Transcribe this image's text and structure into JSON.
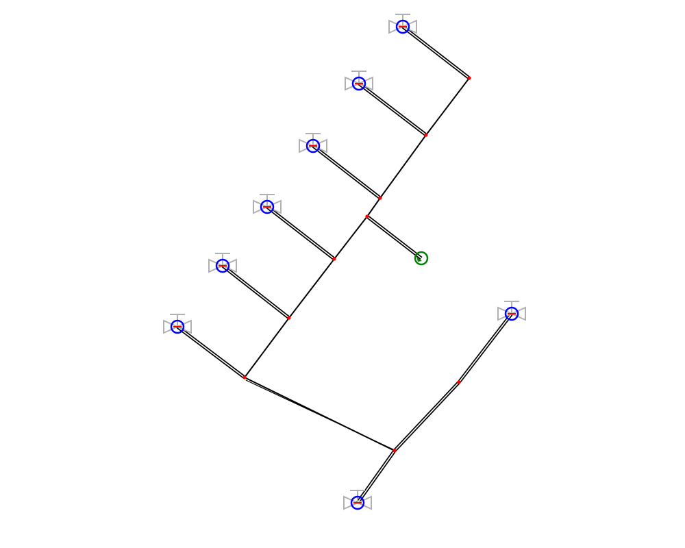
{
  "diagram": {
    "type": "pipe-network",
    "colors": {
      "background": "#ffffff",
      "pipe": "#000000",
      "pipe_inner": "#ffffff",
      "node": "#ff0000",
      "terminal": "#0000ff",
      "source": "#008000",
      "valve_symbol": "#b0b0b0"
    },
    "nodes": [
      {
        "id": "N1",
        "role": "junction"
      },
      {
        "id": "N2",
        "role": "junction"
      },
      {
        "id": "N3",
        "role": "junction"
      },
      {
        "id": "N4",
        "role": "junction"
      },
      {
        "id": "N5",
        "role": "junction"
      },
      {
        "id": "N6",
        "role": "junction"
      },
      {
        "id": "N7",
        "role": "junction"
      },
      {
        "id": "N8",
        "role": "junction"
      },
      {
        "id": "N9",
        "role": "junction"
      },
      {
        "id": "T1",
        "role": "terminal-valve"
      },
      {
        "id": "T2",
        "role": "terminal-valve"
      },
      {
        "id": "T3",
        "role": "terminal-valve"
      },
      {
        "id": "T4",
        "role": "terminal-valve"
      },
      {
        "id": "T5",
        "role": "terminal-valve"
      },
      {
        "id": "T6",
        "role": "terminal-valve"
      },
      {
        "id": "T7",
        "role": "terminal-valve"
      },
      {
        "id": "T8",
        "role": "terminal-valve"
      },
      {
        "id": "S1",
        "role": "source"
      }
    ],
    "pipes": [
      {
        "from": "N1",
        "to": "N2",
        "style": "single"
      },
      {
        "from": "N2",
        "to": "N3",
        "style": "single"
      },
      {
        "from": "N3",
        "to": "N4",
        "style": "single"
      },
      {
        "from": "N4",
        "to": "N5",
        "style": "single"
      },
      {
        "from": "N5",
        "to": "N6",
        "style": "single"
      },
      {
        "from": "N6",
        "to": "N7",
        "style": "single"
      },
      {
        "from": "N7",
        "to": "N8",
        "style": "single"
      },
      {
        "from": "N7",
        "to": "N9",
        "style": "single"
      },
      {
        "from": "N1",
        "to": "T1",
        "style": "double"
      },
      {
        "from": "N2",
        "to": "T2",
        "style": "double"
      },
      {
        "from": "N3",
        "to": "T3",
        "style": "double"
      },
      {
        "from": "N5",
        "to": "T4",
        "style": "double"
      },
      {
        "from": "N6",
        "to": "T5",
        "style": "double"
      },
      {
        "from": "N7",
        "to": "T6",
        "style": "double"
      },
      {
        "from": "N4",
        "to": "S1",
        "style": "double"
      },
      {
        "from": "N9",
        "to": "N10",
        "style": "double"
      },
      {
        "from": "N10",
        "to": "T7",
        "style": "double"
      },
      {
        "from": "N9",
        "to": "T8",
        "style": "double"
      }
    ]
  }
}
